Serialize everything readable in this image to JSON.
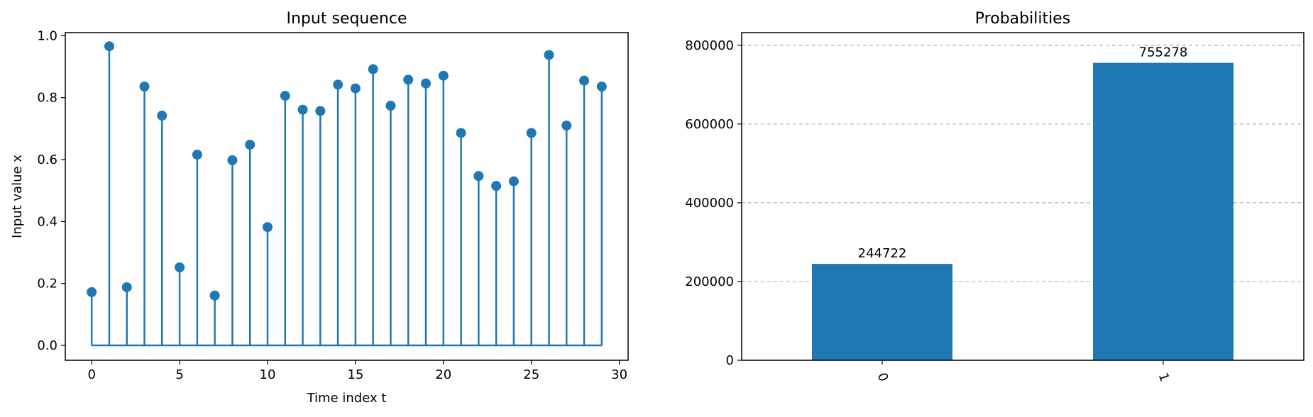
{
  "colors": {
    "series": "#1f77b4",
    "axis": "#000000",
    "grid": "#b0b0b0"
  },
  "chart_data": [
    {
      "type": "stem",
      "title": "Input sequence",
      "xlabel": "Time index t",
      "ylabel": "Input value x",
      "xlim": [
        -1.5,
        30.5
      ],
      "ylim": [
        -0.048,
        1.01
      ],
      "xticks": [
        0,
        5,
        10,
        15,
        20,
        25,
        30
      ],
      "yticks": [
        0.0,
        0.2,
        0.4,
        0.6,
        0.8,
        1.0
      ],
      "xtick_labels": [
        "0",
        "5",
        "10",
        "15",
        "20",
        "25",
        "30"
      ],
      "ytick_labels": [
        "0.0",
        "0.2",
        "0.4",
        "0.6",
        "0.8",
        "1.0"
      ],
      "grid": false,
      "x": [
        0,
        1,
        2,
        3,
        4,
        5,
        6,
        7,
        8,
        9,
        10,
        11,
        12,
        13,
        14,
        15,
        16,
        17,
        18,
        19,
        20,
        21,
        22,
        23,
        24,
        25,
        26,
        27,
        28,
        29
      ],
      "values": [
        0.172,
        0.966,
        0.188,
        0.836,
        0.742,
        0.252,
        0.616,
        0.161,
        0.598,
        0.648,
        0.382,
        0.806,
        0.761,
        0.757,
        0.842,
        0.83,
        0.892,
        0.774,
        0.858,
        0.846,
        0.871,
        0.686,
        0.547,
        0.515,
        0.53,
        0.686,
        0.938,
        0.71,
        0.855,
        0.836
      ]
    },
    {
      "type": "bar",
      "title": "Probabilities",
      "categories": [
        "0",
        "1"
      ],
      "values": [
        244722,
        755278
      ],
      "data_labels": [
        "244722",
        "755278"
      ],
      "ylim": [
        0,
        832000
      ],
      "yticks": [
        0,
        200000,
        400000,
        600000,
        800000
      ],
      "ytick_labels": [
        "0",
        "200000",
        "400000",
        "600000",
        "800000"
      ],
      "xlabel": "",
      "ylabel": "",
      "grid": "y-dashed",
      "xtick_rotation": 70
    }
  ]
}
